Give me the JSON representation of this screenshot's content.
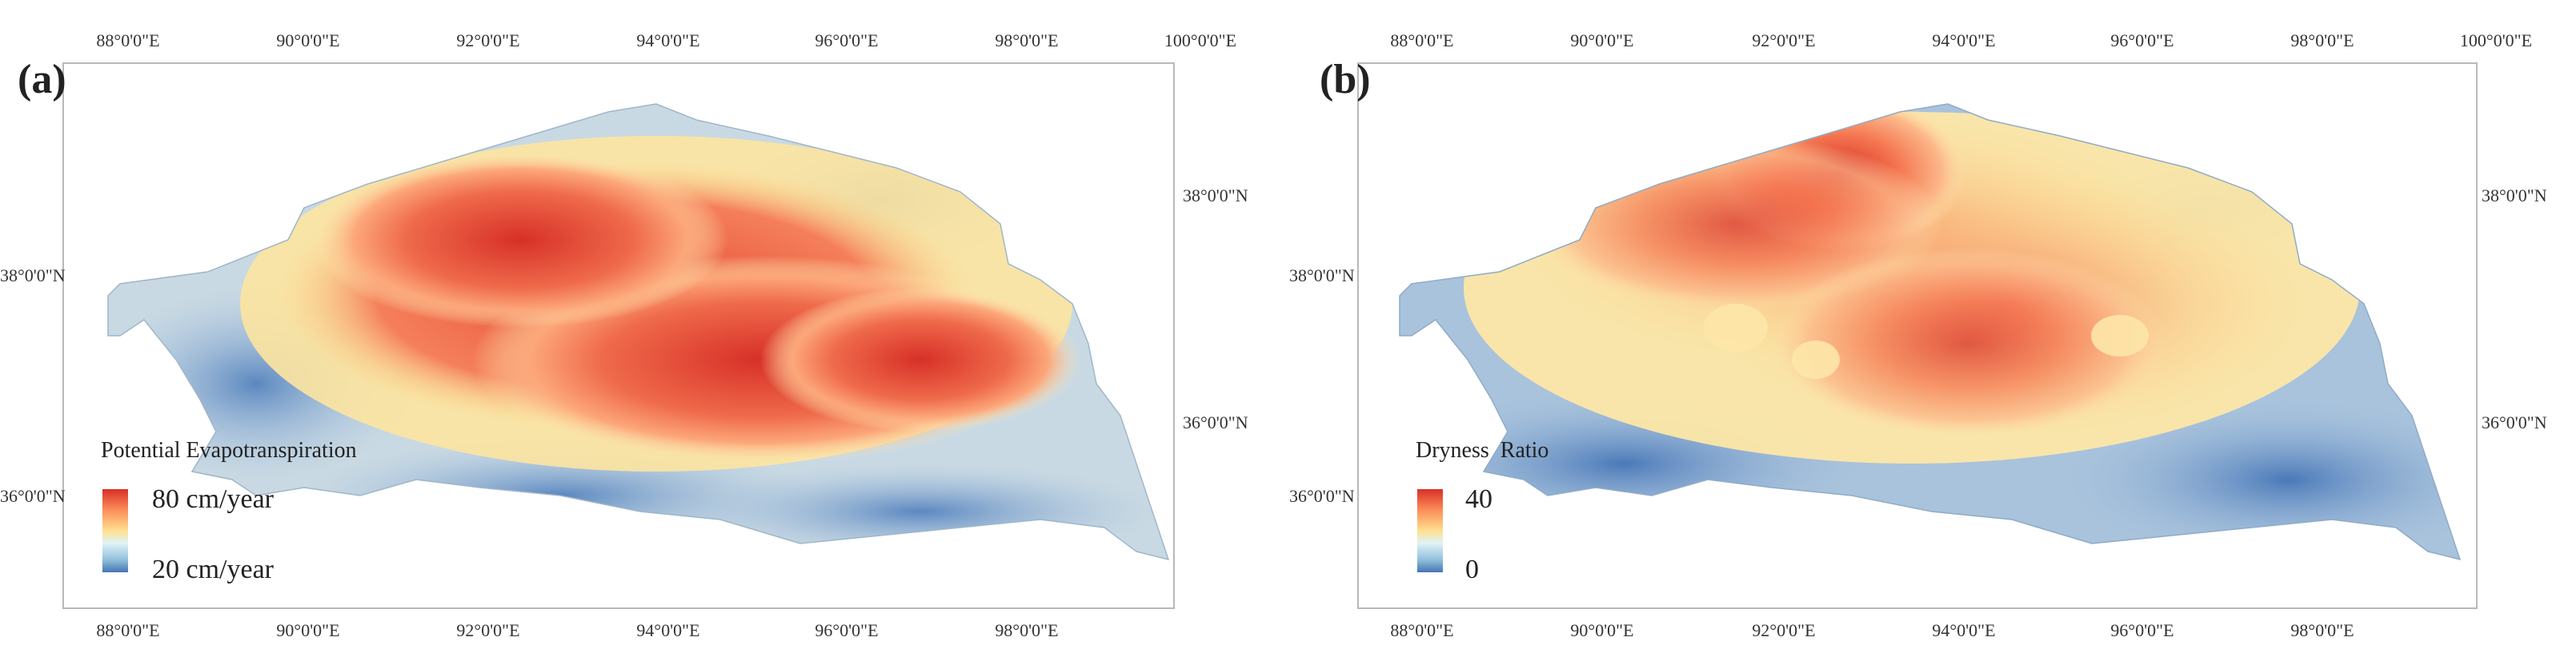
{
  "panels": {
    "a": {
      "label": "(a)",
      "legend_title": "Potential Evapotranspiration",
      "legend_max": "80 cm/year",
      "legend_min": "20 cm/year"
    },
    "b": {
      "label": "(b)",
      "legend_title": "Dryness  Ratio",
      "legend_max": "40",
      "legend_min": "0"
    }
  },
  "axes": {
    "top_ticks": [
      "88°0'0\"E",
      "90°0'0\"E",
      "92°0'0\"E",
      "94°0'0\"E",
      "96°0'0\"E",
      "98°0'0\"E",
      "100°0'0\"E"
    ],
    "bottom_ticks": [
      "88°0'0\"E",
      "90°0'0\"E",
      "92°0'0\"E",
      "94°0'0\"E",
      "96°0'0\"E",
      "98°0'0\"E"
    ],
    "left_ticks": [
      "38°0'0\"N",
      "36°0'0\"N"
    ],
    "right_ticks": [
      "38°0'0\"N",
      "36°0'0\"N"
    ]
  },
  "colors": {
    "high": "#d73027",
    "mid": "#fee090",
    "low": "#4575b4"
  }
}
